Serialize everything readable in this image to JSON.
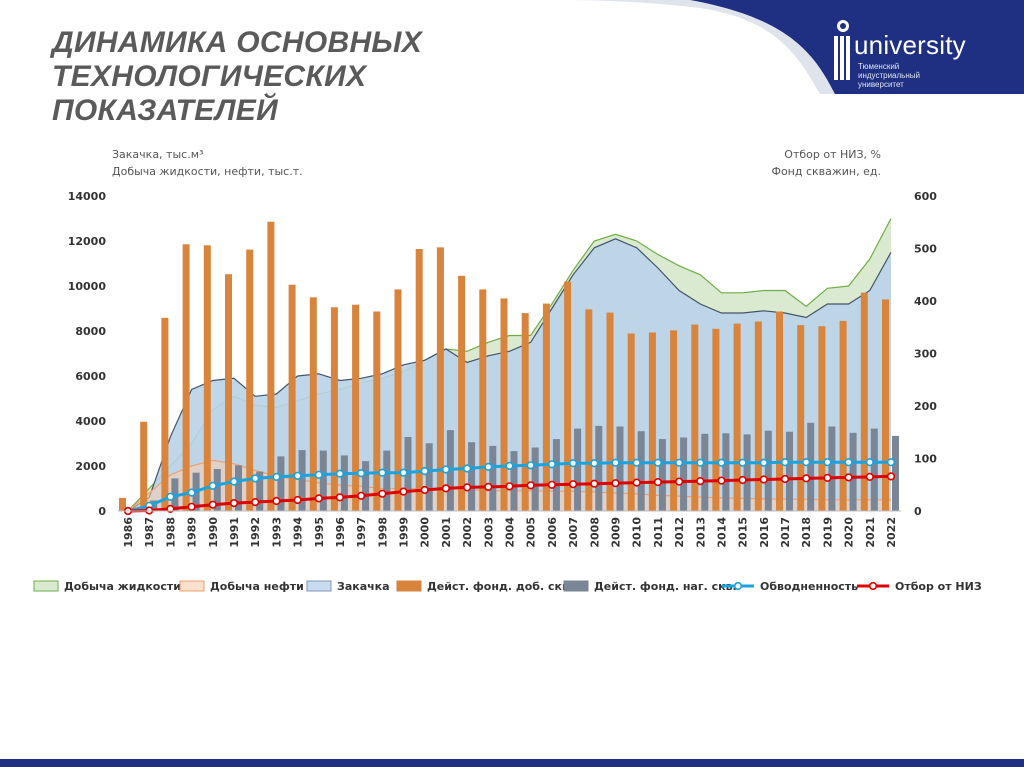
{
  "slide": {
    "title_line1": "ДИНАМИКА ОСНОВНЫХ ТЕХНОЛОГИЧЕСКИХ",
    "title_line2": "ПОКАЗАТЕЛЕЙ"
  },
  "logo": {
    "word": "university",
    "sub1": "Тюменский",
    "sub2": "индустриальный",
    "sub3": "университет"
  },
  "colors": {
    "header_blue": "#1f2f82",
    "liquid": "#70ad47",
    "oil": "#f4b183",
    "injection": "#a9c8e0",
    "prod_wells": "#d9843d",
    "inj_wells": "#7a8596",
    "watercut": "#1aa3dc",
    "takeoff": "#e00000"
  },
  "chart_data": {
    "type": "combo",
    "left_axis_title_1": "Закачка, тыс.м³",
    "left_axis_title_2": "Добыча жидкости, нефти, тыс.т.",
    "right_axis_title_1": "Отбор от НИЗ, %",
    "right_axis_title_2": "Фонд скважин, ед.",
    "y_left": {
      "min": 0,
      "max": 14000,
      "ticks": [
        "0",
        "2000",
        "4000",
        "6000",
        "8000",
        "10000",
        "12000",
        "14000"
      ]
    },
    "y_right": {
      "min": 0,
      "max": 600,
      "ticks": [
        "0",
        "100",
        "200",
        "300",
        "400",
        "500",
        "600"
      ]
    },
    "categories": [
      "1986",
      "1987",
      "1988",
      "1989",
      "1990",
      "1991",
      "1992",
      "1993",
      "1994",
      "1995",
      "1996",
      "1997",
      "1998",
      "1999",
      "2000",
      "2001",
      "2002",
      "2003",
      "2004",
      "2005",
      "2006",
      "2007",
      "2008",
      "2009",
      "2010",
      "2011",
      "2012",
      "2013",
      "2014",
      "2015",
      "2016",
      "2017",
      "2018",
      "2019",
      "2020",
      "2021",
      "2022"
    ],
    "series": [
      {
        "key": "liquid",
        "name": "Добыча жидкости",
        "kind": "area",
        "axis": "left",
        "values": [
          0,
          1000,
          2000,
          3000,
          4500,
          5100,
          4700,
          4600,
          4900,
          5200,
          5400,
          5700,
          5900,
          6200,
          6700,
          7200,
          7100,
          7500,
          7800,
          7800,
          9200,
          10700,
          12000,
          12300,
          12000,
          11400,
          10900,
          10500,
          9700,
          9700,
          9800,
          9800,
          9100,
          9900,
          10000,
          11200,
          13000
        ]
      },
      {
        "key": "oil",
        "name": "Добыча нефти",
        "kind": "area",
        "axis": "left",
        "values": [
          0,
          800,
          1600,
          2000,
          2250,
          2100,
          1800,
          1550,
          1400,
          1250,
          1150,
          1100,
          1000,
          1000,
          1000,
          1000,
          950,
          900,
          900,
          900,
          880,
          870,
          850,
          800,
          760,
          700,
          660,
          620,
          580,
          560,
          540,
          530,
          520,
          500,
          500,
          500,
          500
        ]
      },
      {
        "key": "injection",
        "name": "Закачка",
        "kind": "area",
        "axis": "left",
        "values": [
          0,
          600,
          3300,
          5400,
          5800,
          5900,
          5100,
          5200,
          6000,
          6100,
          5800,
          5900,
          6100,
          6500,
          6700,
          7200,
          6600,
          6900,
          7100,
          7500,
          9000,
          10500,
          11700,
          12100,
          11700,
          10800,
          9800,
          9200,
          8800,
          8800,
          8900,
          8800,
          8600,
          9200,
          9200,
          9800,
          11500
        ]
      },
      {
        "key": "prod_wells",
        "name": "Дейст. фонд. доб. скв.",
        "kind": "bar",
        "axis": "right",
        "values": [
          25,
          170,
          368,
          508,
          506,
          451,
          498,
          551,
          431,
          407,
          388,
          393,
          380,
          422,
          499,
          502,
          448,
          422,
          405,
          377,
          395,
          437,
          384,
          378,
          338,
          340,
          344,
          355,
          347,
          357,
          361,
          380,
          354,
          352,
          362,
          416,
          403
        ]
      },
      {
        "key": "inj_wells",
        "name": "Дейст. фонд. наг. скв.",
        "kind": "bar",
        "axis": "right",
        "values": [
          0,
          20,
          62,
          73,
          80,
          87,
          75,
          104,
          116,
          115,
          106,
          95,
          115,
          141,
          129,
          154,
          131,
          124,
          114,
          121,
          137,
          157,
          162,
          161,
          152,
          137,
          140,
          147,
          148,
          146,
          153,
          151,
          168,
          161,
          149,
          157,
          143
        ]
      },
      {
        "key": "watercut",
        "name": "Обводненность",
        "kind": "line",
        "axis": "right",
        "values": [
          0,
          10,
          27,
          35,
          48,
          56,
          62,
          65,
          67,
          69,
          71,
          72,
          73,
          73,
          76,
          79,
          81,
          84,
          86,
          87,
          89,
          91,
          91,
          92,
          92,
          92,
          92,
          92,
          92,
          92,
          92,
          93,
          93,
          93,
          93,
          93,
          93
        ]
      },
      {
        "key": "takeoff",
        "name": "Отбор от НИЗ",
        "kind": "line",
        "axis": "right",
        "values": [
          0,
          1,
          4,
          8,
          12,
          15,
          17,
          19,
          21,
          24,
          26,
          29,
          33,
          37,
          40,
          43,
          45,
          46,
          47,
          49,
          50,
          51,
          52,
          53,
          54,
          55,
          56,
          57,
          58,
          59,
          60,
          61,
          62,
          63,
          64,
          65,
          66
        ]
      }
    ],
    "legend": [
      "Добыча жидкости",
      "Добыча нефти",
      "Закачка",
      "Дейст. фонд. доб. скв.",
      "Дейст. фонд. наг. скв.",
      "Обводненность",
      "Отбор от НИЗ"
    ],
    "legend_position": "bottom"
  }
}
